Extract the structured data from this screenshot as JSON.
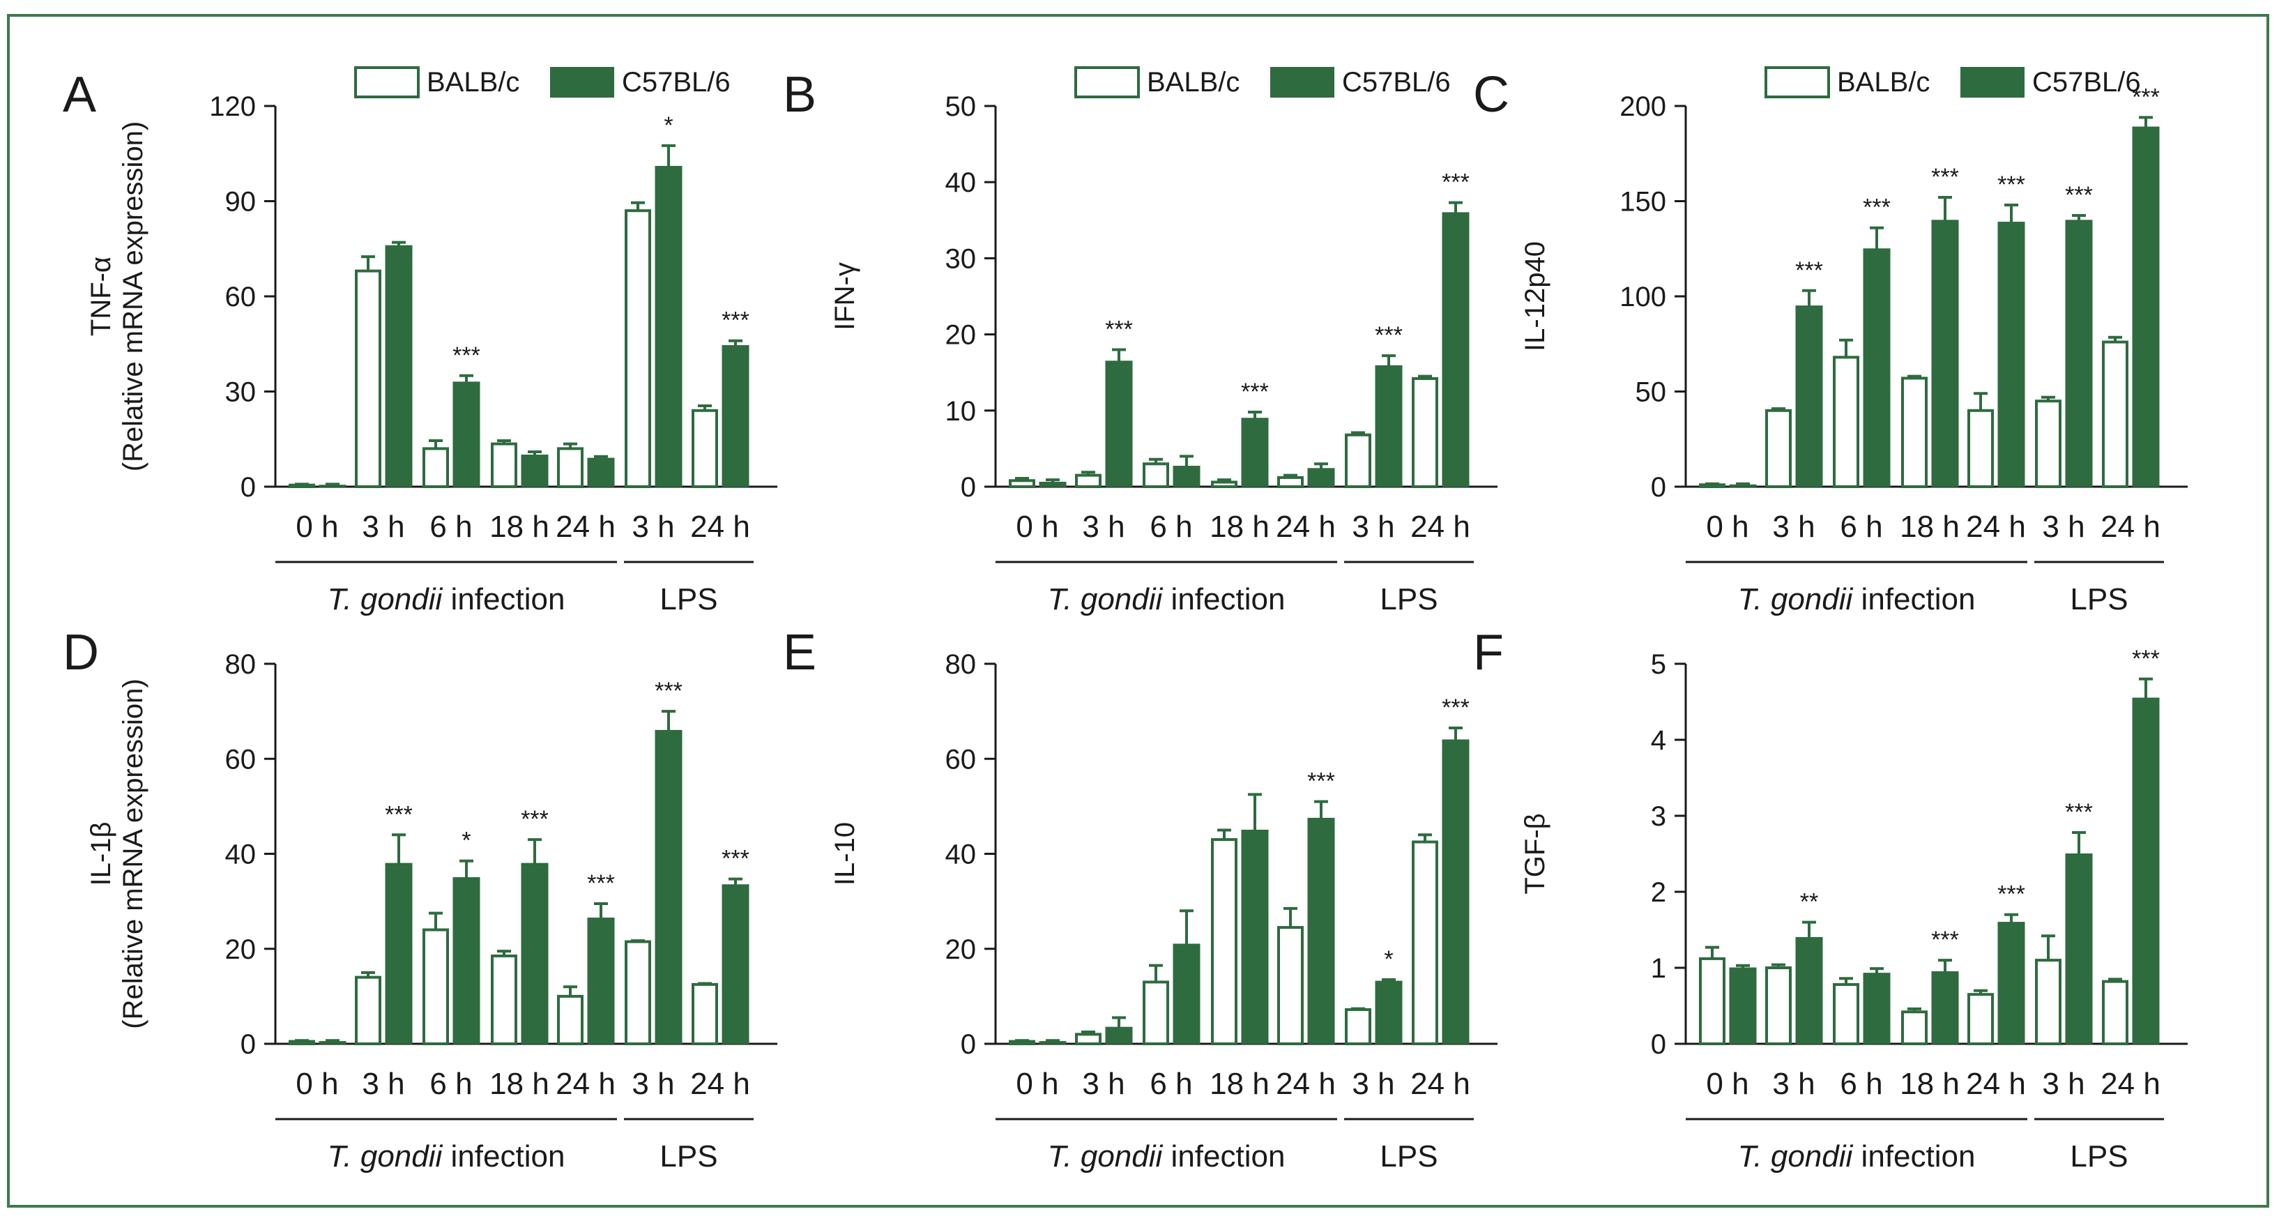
{
  "colors": {
    "frame": "#3d7a4d",
    "balb": "#ffffff",
    "balb_stroke": "#2e6b3f",
    "c57": "#2e6b3f",
    "axis": "#1a1a1a"
  },
  "legend": {
    "balb": "BALB/c",
    "c57": "C57BL/6"
  },
  "groups": {
    "infection_italic": "T. gondii",
    "infection_rest": " infection",
    "lps": "LPS"
  },
  "chart_data": [
    {
      "letter": "A",
      "type": "bar",
      "ylabel_top": "TNF-α",
      "ylabel_bottom": "(Relative mRNA expression)",
      "ylim": [
        0,
        120
      ],
      "yticks": [
        "0",
        "30",
        "60",
        "90",
        "120"
      ],
      "yticks_values": [
        0,
        30,
        60,
        90,
        120
      ],
      "categories": [
        "0 h",
        "3 h",
        "6 h",
        "18 h",
        "24 h",
        "3 h",
        "24 h"
      ],
      "series": [
        {
          "name": "BALB/c",
          "values": [
            0.5,
            68,
            12,
            13.5,
            12,
            87,
            24
          ],
          "errors": [
            0.3,
            4.5,
            2.5,
            1,
            1.5,
            2.5,
            1.5
          ]
        },
        {
          "name": "C57BL/6",
          "values": [
            0.5,
            76,
            33,
            10,
            9,
            101,
            44.5
          ],
          "errors": [
            0.3,
            1,
            2,
            1,
            0.5,
            6.5,
            1.5
          ]
        }
      ],
      "significance": [
        "",
        "",
        "***",
        "",
        "",
        "*",
        "***"
      ],
      "show_legend": true
    },
    {
      "letter": "B",
      "type": "bar",
      "ylabel_top": "IFN-γ",
      "ylabel_bottom": "",
      "ylim": [
        0,
        50
      ],
      "yticks": [
        "0",
        "10",
        "20",
        "30",
        "40",
        "50"
      ],
      "yticks_values": [
        0,
        10,
        20,
        30,
        40,
        50
      ],
      "categories": [
        "0 h",
        "3 h",
        "6 h",
        "18 h",
        "24 h",
        "3 h",
        "24 h"
      ],
      "series": [
        {
          "name": "BALB/c",
          "values": [
            0.8,
            1.5,
            3,
            0.6,
            1.2,
            6.8,
            14.2
          ],
          "errors": [
            0.3,
            0.4,
            0.6,
            0.3,
            0.3,
            0.3,
            0.3
          ]
        },
        {
          "name": "C57BL/6",
          "values": [
            0.6,
            16.5,
            2.7,
            9,
            2.4,
            15.9,
            36
          ],
          "errors": [
            0.3,
            1.5,
            1.3,
            0.8,
            0.6,
            1.3,
            1.3
          ]
        }
      ],
      "significance": [
        "",
        "***",
        "",
        "***",
        "",
        "***",
        "***"
      ],
      "show_legend": true
    },
    {
      "letter": "C",
      "type": "bar",
      "ylabel_top": "IL-12p40",
      "ylabel_bottom": "",
      "ylim": [
        0,
        200
      ],
      "yticks": [
        "0",
        "50",
        "100",
        "150",
        "200"
      ],
      "yticks_values": [
        0,
        50,
        100,
        150,
        200
      ],
      "categories": [
        "0 h",
        "3 h",
        "6 h",
        "18 h",
        "24 h",
        "3 h",
        "24 h"
      ],
      "series": [
        {
          "name": "BALB/c",
          "values": [
            1,
            40,
            68,
            57,
            40,
            45,
            76
          ],
          "errors": [
            0.5,
            1,
            9,
            1,
            9,
            2,
            2.5
          ]
        },
        {
          "name": "C57BL/6",
          "values": [
            1,
            95,
            125,
            140,
            139,
            140,
            189
          ],
          "errors": [
            0.5,
            8,
            11,
            12,
            9,
            2.5,
            5
          ]
        }
      ],
      "significance": [
        "",
        "***",
        "***",
        "***",
        "***",
        "***",
        "***"
      ],
      "show_legend": true
    },
    {
      "letter": "D",
      "type": "bar",
      "ylabel_top": "IL-1β",
      "ylabel_bottom": "(Relative mRNA expression)",
      "ylim": [
        0,
        80
      ],
      "yticks": [
        "0",
        "20",
        "40",
        "60",
        "80"
      ],
      "yticks_values": [
        0,
        20,
        40,
        60,
        80
      ],
      "categories": [
        "0 h",
        "3 h",
        "6 h",
        "18 h",
        "24 h",
        "3 h",
        "24 h"
      ],
      "series": [
        {
          "name": "BALB/c",
          "values": [
            0.5,
            14,
            24,
            18.5,
            10,
            21.5,
            12.5
          ],
          "errors": [
            0.2,
            1,
            3.5,
            1,
            2,
            0.2,
            0.2
          ]
        },
        {
          "name": "C57BL/6",
          "values": [
            0.5,
            38,
            35,
            38,
            26.5,
            66,
            33.5
          ],
          "errors": [
            0.2,
            6,
            3.5,
            5,
            3,
            4,
            1.2
          ]
        }
      ],
      "significance": [
        "",
        "***",
        "*",
        "***",
        "***",
        "***",
        "***"
      ],
      "show_legend": false
    },
    {
      "letter": "E",
      "type": "bar",
      "ylabel_top": "IL-10",
      "ylabel_bottom": "",
      "ylim": [
        0,
        80
      ],
      "yticks": [
        "0",
        "20",
        "40",
        "60",
        "80"
      ],
      "yticks_values": [
        0,
        20,
        40,
        60,
        80
      ],
      "categories": [
        "0 h",
        "3 h",
        "6 h",
        "18 h",
        "24 h",
        "3 h",
        "24 h"
      ],
      "series": [
        {
          "name": "BALB/c",
          "values": [
            0.5,
            2,
            13,
            43,
            24.5,
            7.2,
            42.5
          ],
          "errors": [
            0.2,
            0.5,
            3.5,
            2,
            4,
            0.2,
            1.5
          ]
        },
        {
          "name": "C57BL/6",
          "values": [
            0.5,
            3.5,
            21,
            45,
            47.5,
            13.2,
            64
          ],
          "errors": [
            0.2,
            2,
            7,
            7.5,
            3.5,
            0.3,
            2.5
          ]
        }
      ],
      "significance": [
        "",
        "",
        "",
        "",
        "***",
        "*",
        "***"
      ],
      "show_legend": false
    },
    {
      "letter": "F",
      "type": "bar",
      "ylabel_top": "TGF-β",
      "ylabel_bottom": "",
      "ylim": [
        0,
        5
      ],
      "yticks": [
        "0",
        "1",
        "2",
        "3",
        "4",
        "5"
      ],
      "yticks_values": [
        0,
        1,
        2,
        3,
        4,
        5
      ],
      "categories": [
        "0 h",
        "3 h",
        "6 h",
        "18 h",
        "24 h",
        "3 h",
        "24 h"
      ],
      "series": [
        {
          "name": "BALB/c",
          "values": [
            1.12,
            1,
            0.78,
            0.42,
            0.65,
            1.1,
            0.82
          ],
          "errors": [
            0.15,
            0.04,
            0.08,
            0.04,
            0.05,
            0.32,
            0.03
          ]
        },
        {
          "name": "C57BL/6",
          "values": [
            1,
            1.4,
            0.93,
            0.95,
            1.6,
            2.5,
            4.55
          ],
          "errors": [
            0.03,
            0.2,
            0.06,
            0.15,
            0.1,
            0.28,
            0.25
          ]
        }
      ],
      "significance": [
        "",
        "**",
        "",
        "***",
        "***",
        "***",
        "***"
      ],
      "show_legend": false
    }
  ]
}
